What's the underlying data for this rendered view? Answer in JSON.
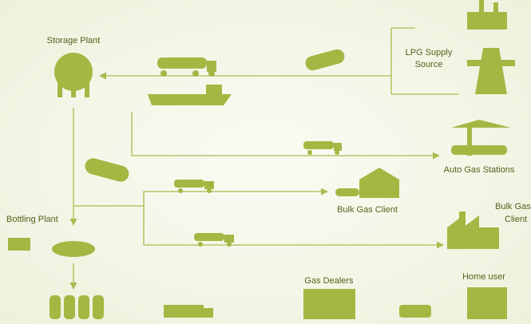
{
  "nodes": [
    {
      "label": [
        "Storage Plant"
      ]
    },
    {
      "label": [
        "LPG Supply",
        "Source"
      ]
    },
    {
      "label": [
        "Auto Gas Stations"
      ]
    },
    {
      "label": [
        "Bulk Gas Client"
      ]
    },
    {
      "label": [
        "Bulk Gas",
        "Client"
      ]
    },
    {
      "label": [
        "Bottling Plant"
      ]
    },
    {
      "label": [
        "Gas Dealers"
      ]
    },
    {
      "label": [
        "Home user"
      ]
    }
  ]
}
